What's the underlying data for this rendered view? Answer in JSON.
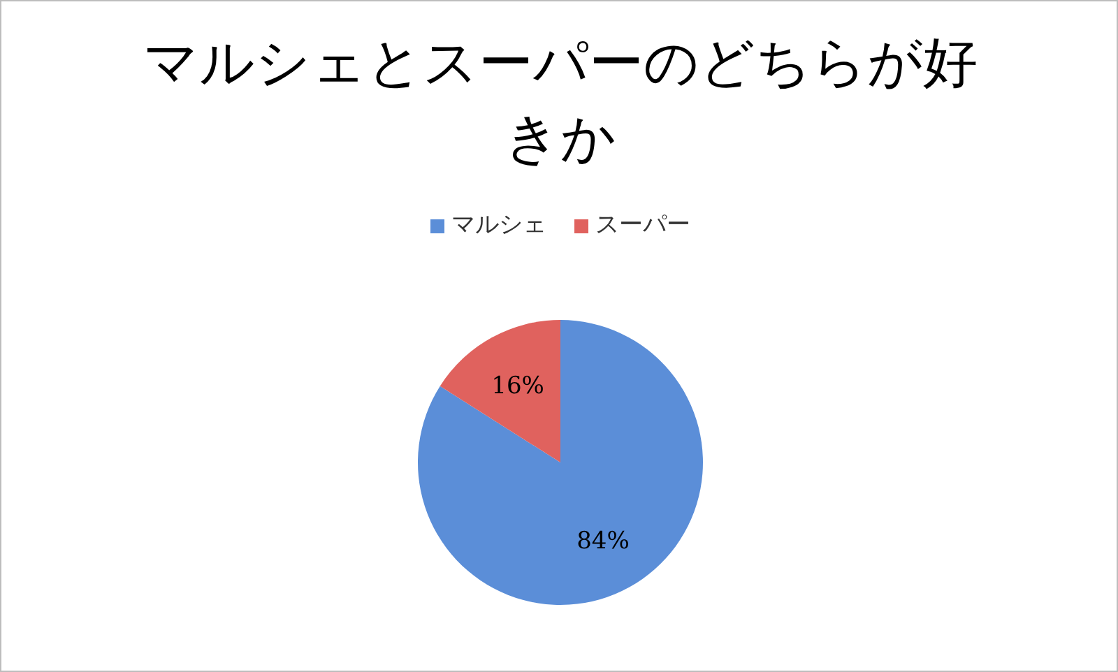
{
  "chart_data": {
    "type": "pie",
    "title": "マルシェとスーパーのどちらが好きか",
    "categories": [
      "マルシェ",
      "スーパー"
    ],
    "values": [
      84,
      16
    ],
    "colors": [
      "#5b8ed8",
      "#e0625e"
    ],
    "value_labels": [
      "84%",
      "16%"
    ],
    "legend": "top"
  }
}
